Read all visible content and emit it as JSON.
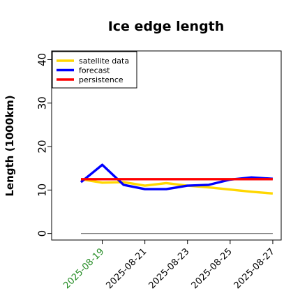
{
  "chart_data": {
    "type": "line",
    "title": "Ice edge length",
    "xlabel": "",
    "ylabel": "Length (1000km)",
    "ylim": [
      -1.5,
      42
    ],
    "yticks": [
      0,
      10,
      20,
      30,
      40
    ],
    "x": [
      "2025-08-18",
      "2025-08-19",
      "2025-08-20",
      "2025-08-21",
      "2025-08-22",
      "2025-08-23",
      "2025-08-24",
      "2025-08-25",
      "2025-08-26",
      "2025-08-27"
    ],
    "xtick_labels": [
      "2025-08-19",
      "2025-08-21",
      "2025-08-23",
      "2025-08-25",
      "2025-08-27"
    ],
    "xtick_label_colors": [
      "#228B22",
      "#000000",
      "#000000",
      "#000000",
      "#000000"
    ],
    "grid": false,
    "legend_position": "top-left",
    "series": [
      {
        "name": "satellite data",
        "color": "#FFD700",
        "values": [
          12.5,
          11.7,
          11.8,
          11.0,
          11.6,
          11.0,
          10.6,
          10.1,
          9.6,
          9.2
        ]
      },
      {
        "name": "forecast",
        "color": "#0000FF",
        "values": [
          11.8,
          15.8,
          11.2,
          10.2,
          10.2,
          11.0,
          11.2,
          12.4,
          12.9,
          12.6
        ]
      },
      {
        "name": "persistence",
        "color": "#FF0000",
        "values": [
          12.5,
          12.5,
          12.5,
          12.5,
          12.5,
          12.5,
          12.5,
          12.5,
          12.5,
          12.5
        ]
      }
    ],
    "reference_line": {
      "y": 0,
      "color": "#808080"
    }
  }
}
